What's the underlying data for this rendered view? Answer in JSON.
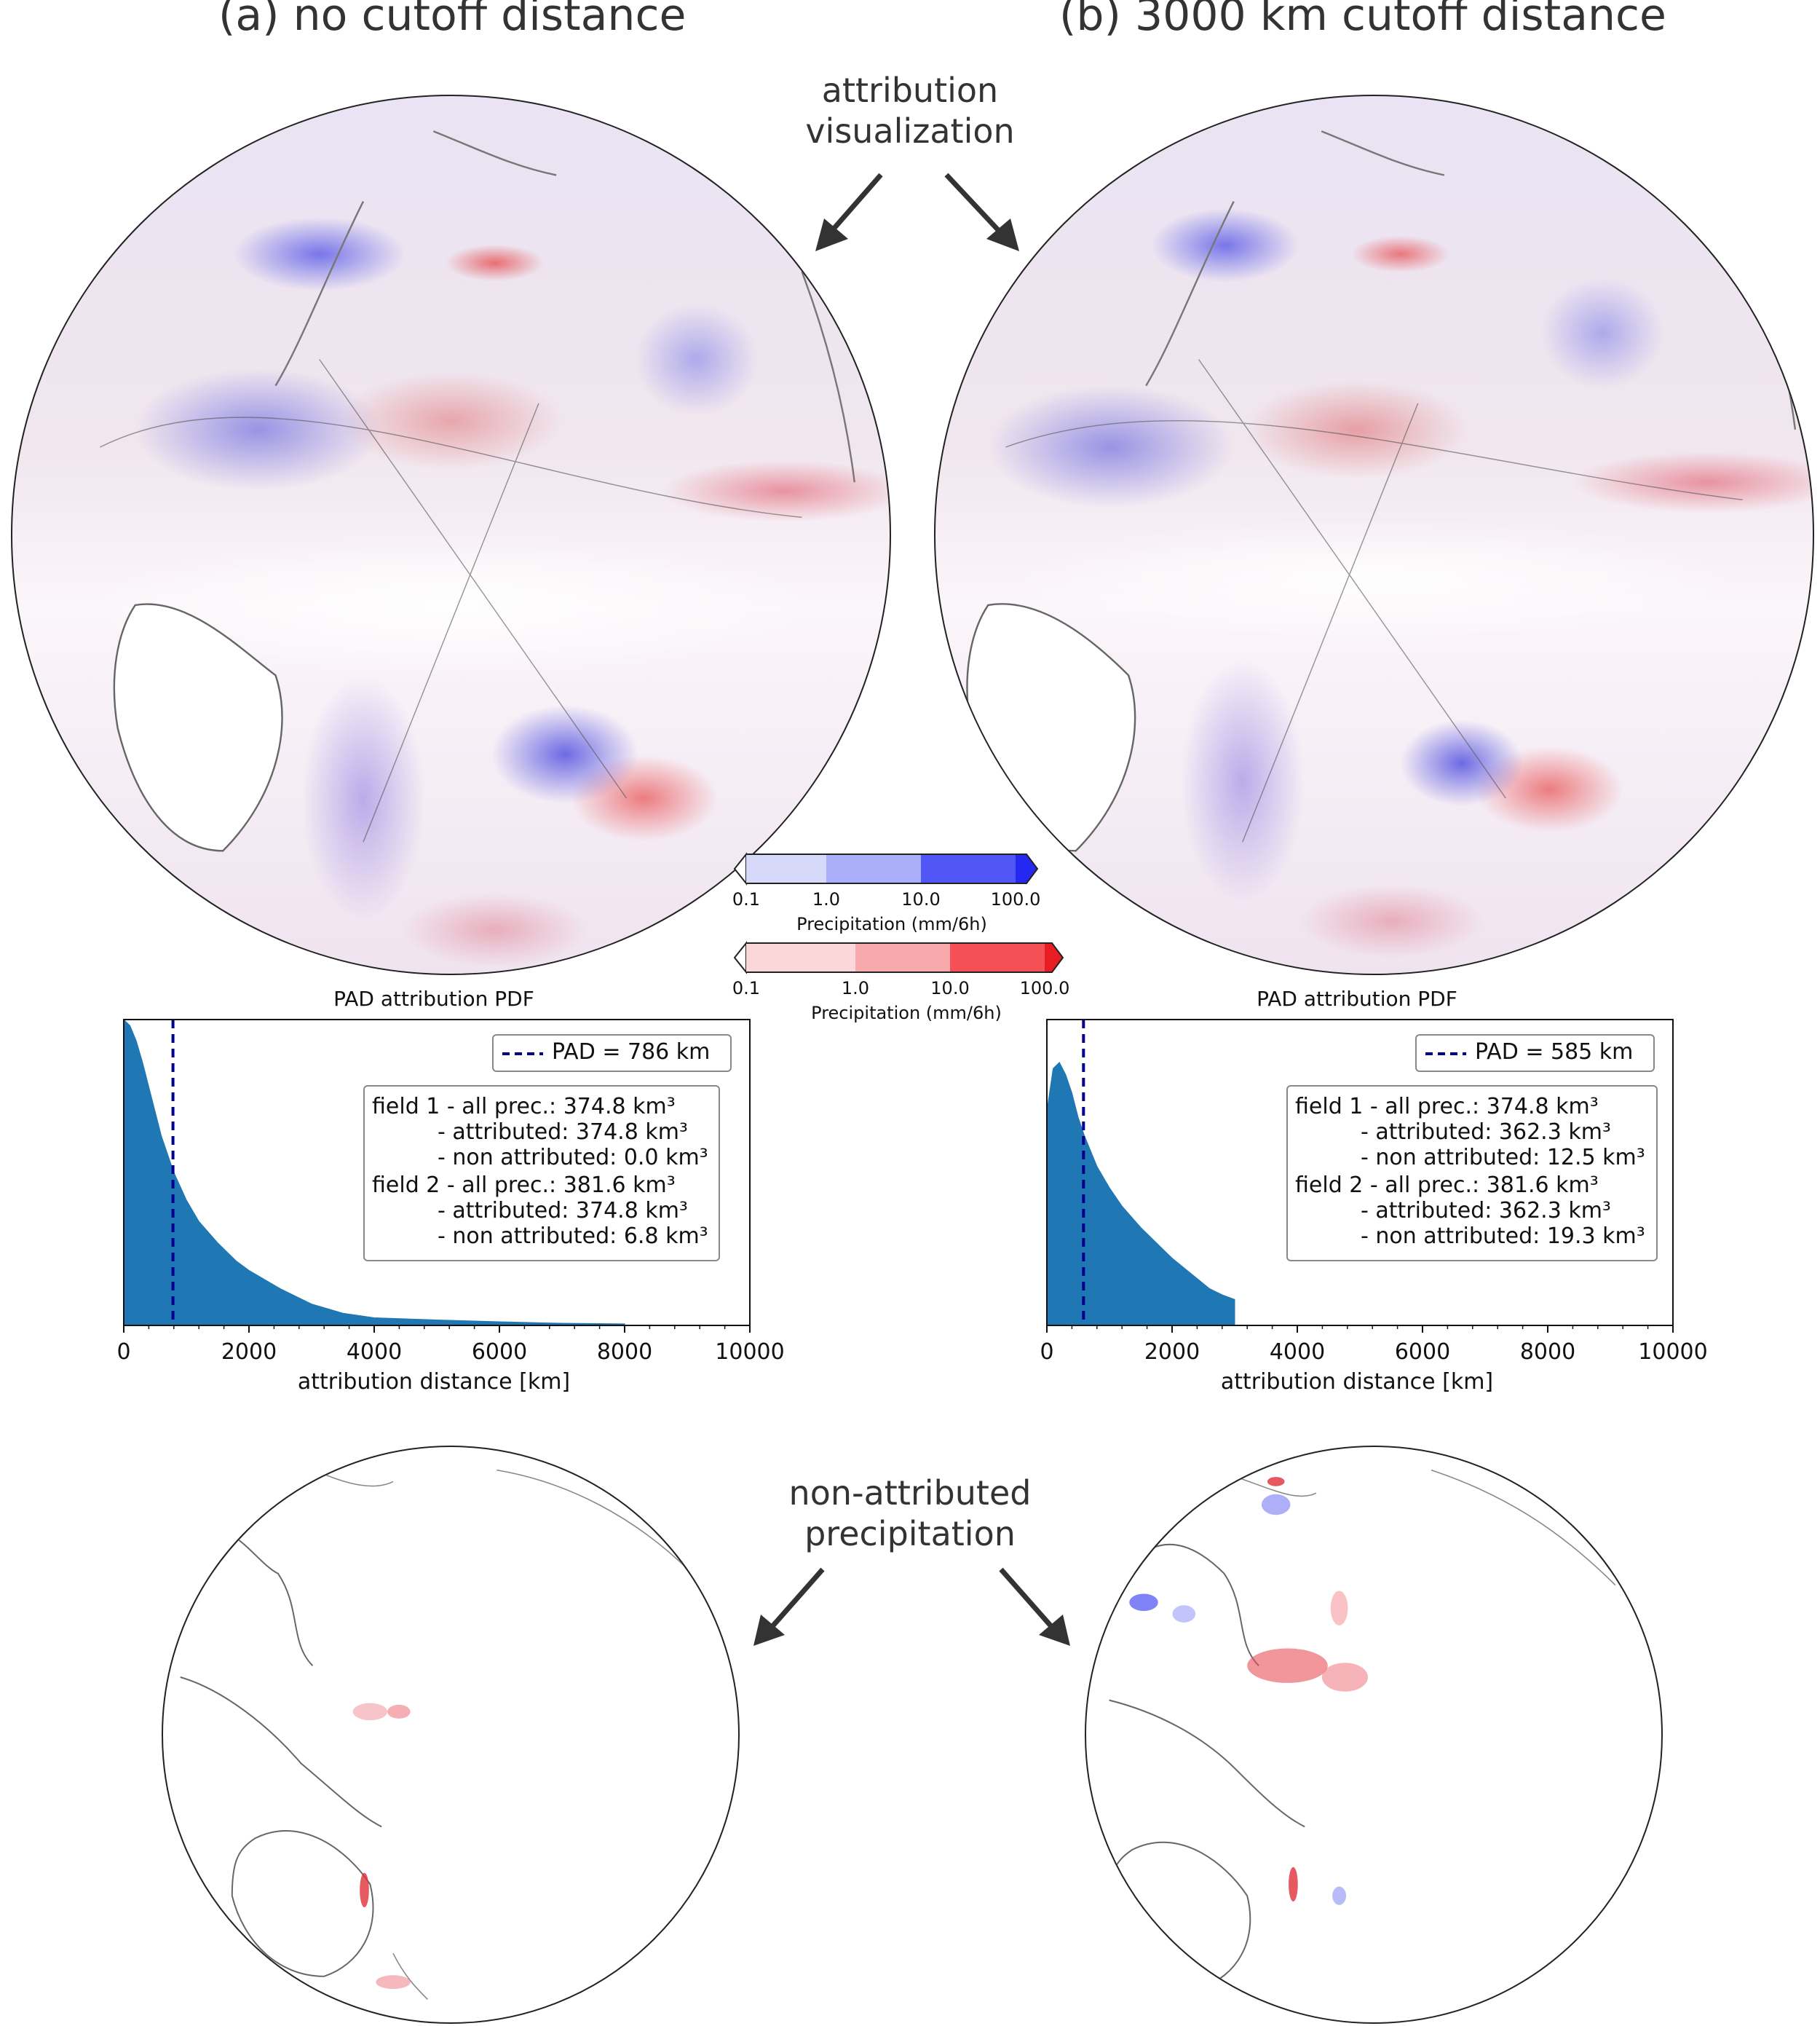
{
  "panels": [
    {
      "title": "(a) no cutoff distance",
      "hist": {
        "title": "PAD attribution PDF",
        "legend": "PAD = 786 km",
        "stats": [
          "field 1 - all prec.: 374.8 km³",
          "- attributed: 374.8 km³",
          "- non attributed: 0.0 km³",
          "field 2 - all prec.: 381.6 km³",
          "- attributed: 374.8 km³",
          "- non attributed: 6.8 km³"
        ],
        "xlabel": "attribution distance [km]"
      }
    },
    {
      "title": "(b) 3000 km cutoff distance",
      "hist": {
        "title": "PAD attribution PDF",
        "legend": "PAD = 585 km",
        "stats": [
          "field 1 - all prec.: 374.8 km³",
          "- attributed: 362.3 km³",
          "- non attributed: 12.5 km³",
          "field 2 - all prec.: 381.6 km³",
          "- attributed: 362.3 km³",
          "- non attributed: 19.3 km³"
        ],
        "xlabel": "attribution distance [km]"
      }
    }
  ],
  "annotations": {
    "top_line1": "attribution",
    "top_line2": "visualization",
    "bottom_line1": "non-attributed",
    "bottom_line2": "precipitation"
  },
  "colorbars": [
    {
      "ticks": [
        "0.1",
        "1.0",
        "10.0",
        "100.0"
      ],
      "label": "Precipitation (mm/6h)",
      "colors": [
        "#d7d9fb",
        "#abaef8",
        "#5156f4",
        "#2528f0"
      ]
    },
    {
      "ticks": [
        "0.1",
        "1.0",
        "10.0",
        "100.0"
      ],
      "label": "Precipitation (mm/6h)",
      "colors": [
        "#fcd7d9",
        "#f8a9ad",
        "#f45056",
        "#e81d24"
      ]
    }
  ],
  "chart_data": [
    {
      "type": "area",
      "title": "PAD attribution PDF",
      "xlabel": "attribution distance [km]",
      "ylabel": "",
      "xlim": [
        0,
        10000
      ],
      "xticks": [
        0,
        2000,
        4000,
        6000,
        8000,
        10000
      ],
      "pad_km": 786,
      "x": [
        0,
        100,
        200,
        300,
        400,
        600,
        800,
        1000,
        1200,
        1500,
        1800,
        2000,
        2500,
        3000,
        3500,
        4000,
        5000,
        6000,
        7000,
        8000
      ],
      "y": [
        1.0,
        0.98,
        0.93,
        0.86,
        0.78,
        0.62,
        0.5,
        0.41,
        0.34,
        0.27,
        0.21,
        0.18,
        0.12,
        0.07,
        0.04,
        0.025,
        0.018,
        0.012,
        0.007,
        0.005
      ],
      "color": "#1f77b4",
      "line_color": "#00008b"
    },
    {
      "type": "area",
      "title": "PAD attribution PDF",
      "xlabel": "attribution distance [km]",
      "ylabel": "",
      "xlim": [
        0,
        10000
      ],
      "xticks": [
        0,
        2000,
        4000,
        6000,
        8000,
        10000
      ],
      "pad_km": 585,
      "x": [
        0,
        100,
        200,
        300,
        400,
        500,
        600,
        800,
        1000,
        1200,
        1500,
        1800,
        2000,
        2300,
        2600,
        2800,
        3000
      ],
      "y": [
        0.7,
        0.84,
        0.86,
        0.82,
        0.76,
        0.68,
        0.62,
        0.52,
        0.45,
        0.39,
        0.32,
        0.26,
        0.22,
        0.17,
        0.12,
        0.1,
        0.085
      ],
      "color": "#1f77b4",
      "line_color": "#00008b"
    }
  ]
}
